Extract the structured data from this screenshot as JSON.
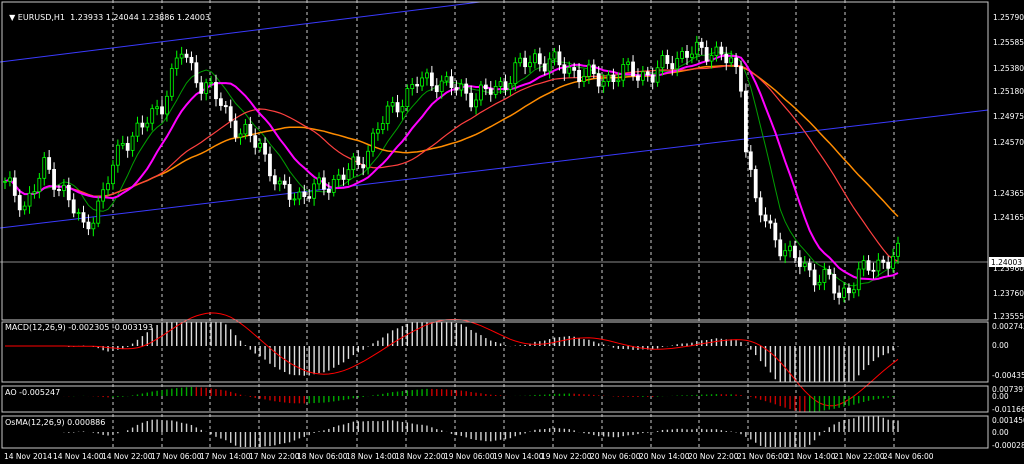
{
  "main": {
    "title": "EURUSD,H1",
    "ohlc": "1.23933 1.24044 1.23886 1.24003",
    "price_labels": [
      "1.25790",
      "1.25585",
      "1.25380",
      "1.25180",
      "1.24975",
      "1.24570",
      "1.24365",
      "1.24165",
      "1.23960",
      "1.23760",
      "1.23555"
    ],
    "current_price": "1.24003"
  },
  "macd": {
    "label": "MACD(12,26,9) -0.002305 -0.003193",
    "scale_labels": [
      "0.002743",
      "0.00",
      "-0.004355"
    ]
  },
  "ao": {
    "label": "AO -0.005247",
    "scale_labels": [
      "0.007397",
      "0.00",
      "-0.011663"
    ]
  },
  "osma": {
    "label": "OsMA(12,26,9) 0.000886",
    "scale_labels": [
      "0.001450",
      "0.00",
      "-0.000280"
    ]
  },
  "time_labels": [
    "14 Nov 2014",
    "14 Nov 14:00",
    "14 Nov 22:00",
    "17 Nov 06:00",
    "17 Nov 14:00",
    "17 Nov 22:00",
    "18 Nov 06:00",
    "18 Nov 14:00",
    "18 Nov 22:00",
    "19 Nov 06:00",
    "19 Nov 14:00",
    "19 Nov 22:00",
    "20 Nov 06:00",
    "20 Nov 14:00",
    "20 Nov 22:00",
    "21 Nov 06:00",
    "21 Nov 14:00",
    "21 Nov 22:00",
    "24 Nov 06:00"
  ],
  "colors": {
    "background": "#000000",
    "bull_candle": "#00ff00",
    "bear_candle": "#ffffff",
    "ma_fast": "#ff00ff",
    "ma_slow": "#ff4040",
    "ma_orange": "#ff8c00",
    "channel": "#3a3aff",
    "grid": "#ffffff",
    "macd_signal": "#ff0000",
    "ao_up": "#00aa00",
    "ao_down": "#cc0000"
  },
  "chart_data": {
    "type": "candlestick",
    "symbol": "EURUSD",
    "timeframe": "H1",
    "ylim": [
      1.235,
      1.26
    ],
    "anchors": [
      [
        0,
        1.2455
      ],
      [
        4,
        1.244
      ],
      [
        8,
        1.2468
      ],
      [
        12,
        1.2452
      ],
      [
        16,
        1.242
      ],
      [
        20,
        1.2448
      ],
      [
        24,
        1.249
      ],
      [
        28,
        1.25
      ],
      [
        32,
        1.252
      ],
      [
        36,
        1.256
      ],
      [
        40,
        1.2535
      ],
      [
        44,
        1.252
      ],
      [
        48,
        1.2495
      ],
      [
        52,
        1.2488
      ],
      [
        56,
        1.245
      ],
      [
        60,
        1.2448
      ],
      [
        64,
        1.2452
      ],
      [
        68,
        1.2462
      ],
      [
        72,
        1.247
      ],
      [
        76,
        1.25
      ],
      [
        80,
        1.252
      ],
      [
        84,
        1.2535
      ],
      [
        88,
        1.2538
      ],
      [
        92,
        1.253
      ],
      [
        96,
        1.2525
      ],
      [
        100,
        1.253
      ],
      [
        104,
        1.2545
      ],
      [
        108,
        1.2555
      ],
      [
        112,
        1.255
      ],
      [
        116,
        1.2545
      ],
      [
        120,
        1.2538
      ],
      [
        124,
        1.254
      ],
      [
        128,
        1.2545
      ],
      [
        132,
        1.254
      ],
      [
        136,
        1.2555
      ],
      [
        140,
        1.2558
      ],
      [
        144,
        1.2562
      ],
      [
        148,
        1.255
      ],
      [
        150,
        1.2535
      ],
      [
        151,
        1.249
      ],
      [
        153,
        1.244
      ],
      [
        156,
        1.242
      ],
      [
        160,
        1.24
      ],
      [
        164,
        1.2388
      ],
      [
        168,
        1.238
      ],
      [
        170,
        1.2368
      ],
      [
        174,
        1.2385
      ],
      [
        178,
        1.2395
      ],
      [
        182,
        1.24
      ]
    ]
  }
}
